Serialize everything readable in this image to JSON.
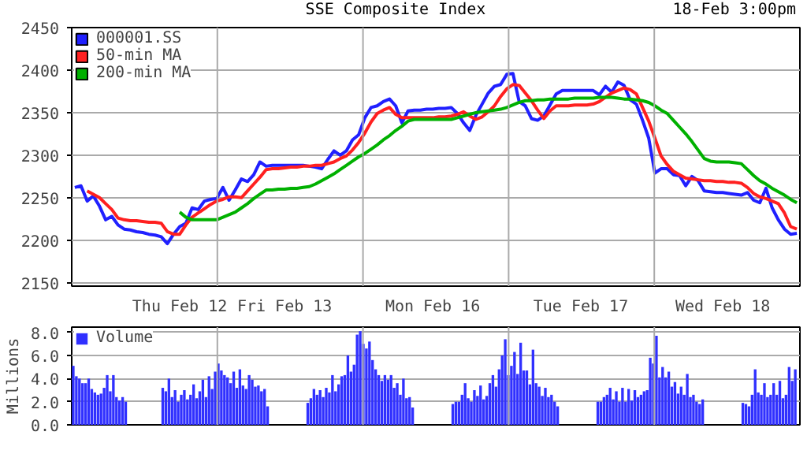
{
  "chart_data": [
    {
      "type": "line",
      "title": "SSE Composite Index",
      "annotations": [
        "18-Feb 3:00pm"
      ],
      "legend": "top left",
      "grid": "y",
      "ylim": [
        2146,
        2450
      ],
      "yticks": [
        2150,
        2200,
        2250,
        2300,
        2350,
        2400,
        2450
      ],
      "categories": [
        null,
        null,
        null,
        null,
        null,
        null,
        null,
        null,
        null,
        null,
        null,
        null,
        null,
        null,
        null,
        null,
        null,
        "Thu Feb 12",
        null,
        null,
        null,
        null,
        null,
        null,
        null,
        null,
        null,
        null,
        null,
        null,
        null,
        null,
        null,
        null,
        "Fri Feb 13",
        null,
        null,
        null,
        null,
        null,
        null,
        null,
        null,
        null,
        null,
        null,
        null,
        null,
        null,
        null,
        null,
        null,
        null,
        null,
        null,
        null,
        null,
        null,
        "Mon Feb 16",
        null,
        null,
        null,
        null,
        null,
        null,
        null,
        null,
        null,
        null,
        null,
        null,
        null,
        null,
        null,
        null,
        null,
        null,
        null,
        null,
        null,
        null,
        null,
        "Tue Feb 17",
        null,
        null,
        null,
        null,
        null,
        null,
        null,
        null,
        null,
        null,
        null,
        null,
        null,
        null,
        null,
        null,
        null,
        null,
        null,
        null,
        null,
        null,
        "Wed Feb 18",
        null,
        null,
        null,
        null,
        null,
        null,
        null,
        null,
        null,
        null,
        null,
        null
      ],
      "series": [
        {
          "name": "000001.SS",
          "color": "#2020ff",
          "values": [
            2262,
            2264,
            2246,
            2252,
            2240,
            2224,
            2228,
            2218,
            2213,
            2212,
            2210,
            2209,
            2207,
            2206,
            2204,
            2196,
            2207,
            2216,
            2220,
            2238,
            2236,
            2246,
            2248,
            2249,
            2262,
            2247,
            2259,
            2272,
            2269,
            2277,
            2292,
            2287,
            2288,
            2288,
            2288,
            2288,
            2288,
            2288,
            2287,
            2286,
            2284,
            2295,
            2305,
            2300,
            2305,
            2318,
            2324,
            2344,
            2356,
            2358,
            2363,
            2366,
            2358,
            2338,
            2352,
            2353,
            2353,
            2354,
            2354,
            2355,
            2355,
            2356,
            2349,
            2338,
            2329,
            2347,
            2360,
            2373,
            2381,
            2383,
            2395,
            2396,
            2363,
            2358,
            2343,
            2341,
            2346,
            2359,
            2372,
            2376,
            2376,
            2376,
            2376,
            2376,
            2376,
            2371,
            2381,
            2374,
            2386,
            2382,
            2365,
            2360,
            2341,
            2320,
            2279,
            2284,
            2284,
            2277,
            2276,
            2264,
            2275,
            2270,
            2258,
            2257,
            2256,
            2256,
            2255,
            2254,
            2253,
            2256,
            2247,
            2244,
            2261,
            2238,
            2224,
            2213,
            2207,
            2208
          ]
        },
        {
          "name": "50-min MA",
          "color": "#ff2020",
          "values": [
            null,
            null,
            2258,
            2254,
            2250,
            2243,
            2236,
            2226,
            2224,
            2223,
            2223,
            2222,
            2221,
            2221,
            2220,
            2210,
            2207,
            2207,
            2218,
            2227,
            2232,
            2237,
            2242,
            2246,
            2248,
            2251,
            2251,
            2250,
            2258,
            2266,
            2274,
            2283,
            2284,
            2284,
            2285,
            2286,
            2286,
            2287,
            2287,
            2288,
            2288,
            2290,
            2292,
            2296,
            2299,
            2306,
            2315,
            2326,
            2339,
            2349,
            2353,
            2356,
            2348,
            2344,
            2344,
            2344,
            2344,
            2344,
            2344,
            2345,
            2345,
            2346,
            2348,
            2351,
            2346,
            2342,
            2345,
            2351,
            2358,
            2369,
            2378,
            2383,
            2382,
            2373,
            2364,
            2353,
            2343,
            2352,
            2358,
            2358,
            2358,
            2359,
            2359,
            2359,
            2360,
            2363,
            2368,
            2373,
            2376,
            2379,
            2377,
            2372,
            2356,
            2340,
            2320,
            2299,
            2289,
            2281,
            2277,
            2273,
            2272,
            2271,
            2270,
            2270,
            2269,
            2269,
            2268,
            2268,
            2267,
            2262,
            2255,
            2251,
            2249,
            2246,
            2243,
            2232,
            2216,
            2213
          ]
        },
        {
          "name": "200-min MA",
          "color": "#00b000",
          "values": [
            null,
            null,
            null,
            null,
            null,
            null,
            null,
            null,
            null,
            null,
            null,
            null,
            null,
            null,
            null,
            null,
            null,
            2233,
            2227,
            2224,
            2224,
            2224,
            2224,
            2224,
            2227,
            2230,
            2233,
            2238,
            2243,
            2249,
            2254,
            2259,
            2259,
            2260,
            2260,
            2261,
            2261,
            2262,
            2263,
            2266,
            2270,
            2274,
            2278,
            2283,
            2288,
            2293,
            2298,
            2302,
            2307,
            2312,
            2318,
            2323,
            2329,
            2334,
            2340,
            2342,
            2342,
            2342,
            2342,
            2342,
            2342,
            2342,
            2344,
            2346,
            2348,
            2350,
            2351,
            2352,
            2353,
            2354,
            2356,
            2359,
            2362,
            2364,
            2364,
            2365,
            2365,
            2366,
            2366,
            2366,
            2366,
            2367,
            2367,
            2367,
            2367,
            2368,
            2368,
            2368,
            2367,
            2366,
            2366,
            2365,
            2364,
            2362,
            2358,
            2353,
            2349,
            2341,
            2333,
            2325,
            2316,
            2306,
            2296,
            2293,
            2292,
            2292,
            2292,
            2291,
            2290,
            2283,
            2276,
            2270,
            2266,
            2261,
            2257,
            2253,
            2248,
            2244
          ]
        }
      ]
    },
    {
      "type": "bar",
      "ylabel": "Millions",
      "legend": "top left",
      "grid": "y",
      "tick_labels": "y",
      "ylim": [
        0,
        8.45
      ],
      "yticks": [
        {
          "value": 0,
          "label": "0.0"
        },
        {
          "value": 2,
          "label": "2.0"
        },
        {
          "value": 4,
          "label": "4.0"
        },
        {
          "value": 6,
          "label": "6.0"
        },
        {
          "value": 8,
          "label": "8.0"
        }
      ],
      "categories": [
        null,
        null,
        null,
        null,
        null,
        null,
        null,
        null,
        null,
        null,
        null,
        null,
        null,
        null,
        null,
        null,
        null,
        null,
        null,
        null,
        null,
        null,
        null,
        null,
        null,
        null,
        null,
        null,
        null,
        null,
        null,
        null,
        null,
        null,
        null,
        null,
        null,
        null,
        null,
        null,
        null,
        null,
        null,
        null,
        null,
        null,
        null,
        null,
        null,
        null,
        null,
        null,
        null,
        null,
        null,
        null,
        null,
        null,
        null,
        null,
        null,
        null,
        null,
        null,
        null,
        null,
        null,
        null,
        null,
        null,
        null,
        null,
        null,
        null,
        null,
        null,
        null,
        null,
        null,
        null,
        null,
        null,
        null,
        null,
        null,
        null,
        null,
        null,
        null,
        null,
        null,
        null,
        null,
        null,
        null,
        null,
        null,
        null,
        null,
        null,
        null,
        null,
        null,
        null,
        null,
        null,
        null,
        null,
        null,
        null,
        null,
        null,
        null,
        null,
        null,
        null,
        null,
        null,
        null,
        null,
        null,
        null,
        null,
        null,
        null,
        null,
        null,
        null,
        null,
        null,
        null,
        null,
        null,
        null,
        null,
        null,
        null,
        null,
        null,
        null,
        null,
        null,
        null,
        null,
        null,
        null,
        null,
        null,
        null,
        null,
        null,
        null,
        null,
        null,
        null,
        null,
        null,
        null,
        null,
        null,
        null,
        null,
        null,
        null,
        null,
        null,
        null,
        null,
        null,
        null,
        null,
        null,
        null,
        null,
        null,
        null,
        null,
        null,
        null,
        null,
        null,
        null,
        null,
        null,
        null,
        null,
        null,
        null,
        null,
        null,
        null,
        null,
        null,
        null,
        null,
        null,
        null,
        null,
        null,
        null,
        null,
        null,
        null,
        null,
        null,
        null,
        null,
        null,
        null,
        null,
        null,
        null,
        null,
        null,
        null,
        null,
        null,
        null,
        null,
        null,
        null,
        null,
        null,
        null,
        null,
        null,
        null,
        null,
        null,
        null,
        null,
        null,
        null,
        null,
        null,
        null
      ],
      "series": [
        {
          "name": "Volume",
          "color": "#3030ff",
          "values": [
            5.1,
            4.2,
            4.0,
            3.6,
            3.6,
            4.0,
            3.1,
            2.8,
            2.6,
            2.7,
            3.2,
            4.3,
            2.9,
            4.3,
            2.4,
            2.1,
            2.4,
            2.0,
            null,
            null,
            null,
            null,
            null,
            null,
            null,
            null,
            null,
            null,
            null,
            3.2,
            2.9,
            4.0,
            2.4,
            3.0,
            2.0,
            2.6,
            3.0,
            2.2,
            2.6,
            3.5,
            2.3,
            2.9,
            3.9,
            2.4,
            4.2,
            3.1,
            4.6,
            5.3,
            4.7,
            4.3,
            4.1,
            3.6,
            4.6,
            3.2,
            4.8,
            3.4,
            3.1,
            4.3,
            3.9,
            3.3,
            3.4,
            2.9,
            3.1,
            1.6,
            null,
            null,
            null,
            null,
            null,
            null,
            null,
            null,
            null,
            null,
            null,
            null,
            1.9,
            2.3,
            3.1,
            2.6,
            3.0,
            2.4,
            3.2,
            2.8,
            4.3,
            2.9,
            3.5,
            4.2,
            4.3,
            6.0,
            4.6,
            5.2,
            7.8,
            8.1,
            7.0,
            6.6,
            7.2,
            5.6,
            4.8,
            4.3,
            3.8,
            4.3,
            3.9,
            4.3,
            3.2,
            3.6,
            2.6,
            4.0,
            2.3,
            2.4,
            1.5,
            null,
            null,
            null,
            null,
            null,
            null,
            null,
            null,
            null,
            null,
            null,
            null,
            1.8,
            2.0,
            2.0,
            2.6,
            3.6,
            2.3,
            2.0,
            3.0,
            2.5,
            3.4,
            2.2,
            2.5,
            3.6,
            4.3,
            3.3,
            4.8,
            6.0,
            7.4,
            4.3,
            5.1,
            6.3,
            4.4,
            7.1,
            4.7,
            4.7,
            3.5,
            6.5,
            3.6,
            3.3,
            2.5,
            3.2,
            2.4,
            2.6,
            2.0,
            1.6,
            null,
            null,
            null,
            null,
            null,
            null,
            null,
            null,
            null,
            null,
            null,
            null,
            2.0,
            2.0,
            2.4,
            2.6,
            3.2,
            2.2,
            2.9,
            2.0,
            3.2,
            2.0,
            3.1,
            2.1,
            3.0,
            2.4,
            2.6,
            2.9,
            3.0,
            5.8,
            5.3,
            7.7,
            4.1,
            5.0,
            4.1,
            4.6,
            3.3,
            3.7,
            2.7,
            3.3,
            2.6,
            4.4,
            2.4,
            2.6,
            2.0,
            1.8,
            2.2,
            null,
            null,
            null,
            null,
            null,
            null,
            null,
            null,
            null,
            null,
            null,
            null,
            1.9,
            1.8,
            1.6,
            2.6,
            4.8,
            2.8,
            2.6,
            3.6,
            2.4,
            2.6,
            3.6,
            2.6,
            3.8,
            2.3,
            2.6,
            5.0,
            3.8,
            4.8,
            null
          ]
        }
      ]
    }
  ]
}
